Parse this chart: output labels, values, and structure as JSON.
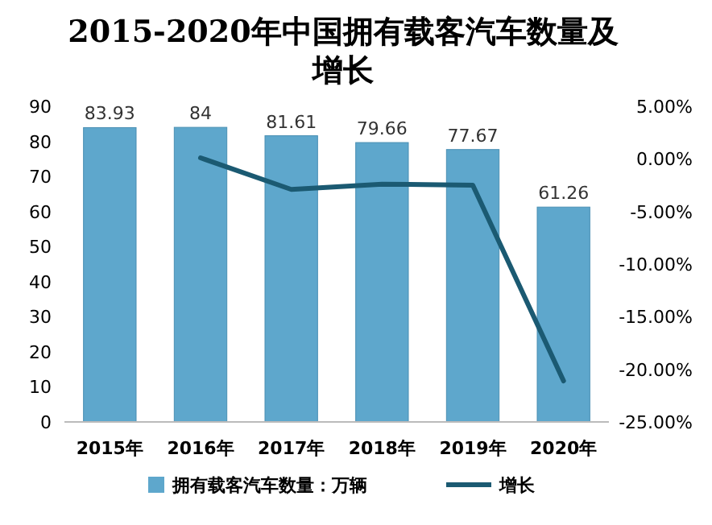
{
  "chart_data": {
    "type": "bar",
    "title": "2015-2020年中国拥有载客汽车数量及增长",
    "categories": [
      "2015年",
      "2016年",
      "2017年",
      "2018年",
      "2019年",
      "2020年"
    ],
    "series": [
      {
        "name": "拥有载客汽车数量：万辆",
        "color": "#5ea7cc",
        "values": [
          83.93,
          84,
          81.61,
          79.66,
          77.67,
          61.26
        ],
        "value_labels": [
          "83.93",
          "84",
          "81.61",
          "79.66",
          "77.67",
          "61.26"
        ]
      },
      {
        "name": "增长",
        "type": "line",
        "axis": "y2",
        "color": "#1b5a72",
        "values": [
          null,
          0.1,
          -2.9,
          -2.4,
          -2.5,
          -21.1
        ]
      }
    ],
    "ylim": [
      0,
      90
    ],
    "yticks": [
      0,
      10,
      20,
      30,
      40,
      50,
      60,
      70,
      80,
      90
    ],
    "y2lim": [
      -25,
      5
    ],
    "y2ticks": [
      {
        "value": 5,
        "label": "5.00%"
      },
      {
        "value": 0,
        "label": "0.00%"
      },
      {
        "value": -5,
        "label": "-5.00%"
      },
      {
        "value": -10,
        "label": "-10.00%"
      },
      {
        "value": -15,
        "label": "-15.00%"
      },
      {
        "value": -20,
        "label": "-20.00%"
      },
      {
        "value": -25,
        "label": "-25.00%"
      }
    ],
    "grid": false,
    "legend": "bottom",
    "marker": "none",
    "line_style": "solid"
  }
}
